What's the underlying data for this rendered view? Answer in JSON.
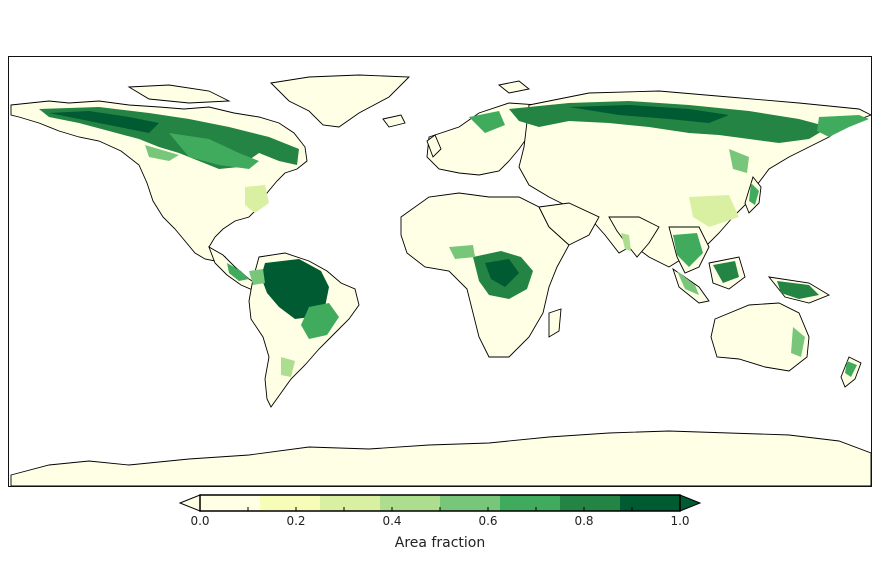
{
  "colorbar": {
    "label": "Area fraction",
    "ticks": [
      "0.0",
      "0.2",
      "0.4",
      "0.6",
      "0.8",
      "1.0"
    ],
    "tick_values": [
      0.0,
      0.2,
      0.4,
      0.6,
      0.8,
      1.0
    ],
    "range": [
      0.0,
      1.0
    ],
    "extend": "both",
    "colors": [
      "#ffffe5",
      "#f7fcb9",
      "#d9f0a3",
      "#addd8e",
      "#78c679",
      "#41ab5d",
      "#238443",
      "#005a32"
    ],
    "under_color": "#ffffe5",
    "over_color": "#005a32"
  },
  "map": {
    "projection": "equirectangular",
    "land_base_color": "#ffffe5",
    "ocean_color": "#ffffff",
    "coastline_color": "#000000"
  }
}
